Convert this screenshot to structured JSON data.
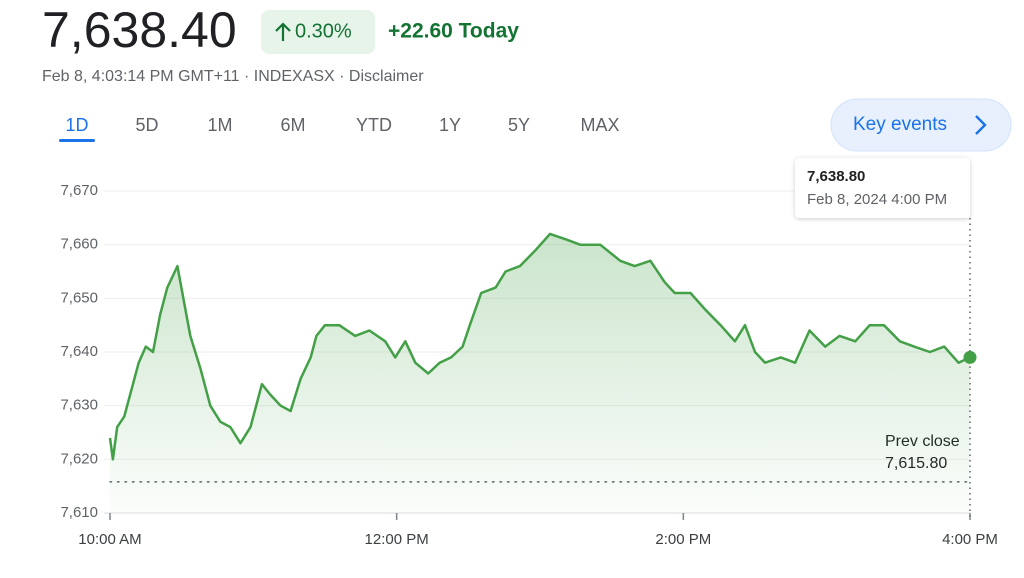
{
  "header": {
    "price": "7,638.40",
    "change_percent": "0.30%",
    "change_today": "+22.60 Today",
    "meta": "Feb 8, 4:03:14 PM GMT+11 · INDEXASX · Disclaimer"
  },
  "tabs": {
    "items": [
      "1D",
      "5D",
      "1M",
      "6M",
      "YTD",
      "1Y",
      "5Y",
      "MAX"
    ],
    "selected": "1D"
  },
  "key_events": "Key events",
  "chart_data": {
    "type": "line",
    "x": [
      10.0,
      10.02,
      10.05,
      10.1,
      10.15,
      10.2,
      10.25,
      10.3,
      10.35,
      10.4,
      10.47,
      10.56,
      10.63,
      10.7,
      10.77,
      10.84,
      10.91,
      10.98,
      11.06,
      11.12,
      11.19,
      11.26,
      11.33,
      11.4,
      11.44,
      11.5,
      11.6,
      11.71,
      11.81,
      11.92,
      11.99,
      12.06,
      12.13,
      12.22,
      12.3,
      12.38,
      12.46,
      12.51,
      12.59,
      12.69,
      12.76,
      12.86,
      12.97,
      13.07,
      13.18,
      13.28,
      13.42,
      13.56,
      13.66,
      13.77,
      13.87,
      13.94,
      14.05,
      14.15,
      14.26,
      14.36,
      14.43,
      14.5,
      14.57,
      14.68,
      14.78,
      14.88,
      14.99,
      15.09,
      15.2,
      15.3,
      15.4,
      15.51,
      15.61,
      15.72,
      15.82,
      15.92,
      16.0
    ],
    "series": [
      {
        "color": "#43a047",
        "values": [
          7624,
          7620,
          7626,
          7628,
          7633,
          7638,
          7641,
          7640,
          7647,
          7652,
          7656,
          7643,
          7637,
          7630,
          7627,
          7626,
          7623,
          7626,
          7634,
          7632,
          7630,
          7629,
          7635,
          7639,
          7643,
          7645,
          7645,
          7643,
          7644,
          7642,
          7639,
          7642,
          7638,
          7636,
          7638,
          7639,
          7641,
          7645,
          7651,
          7652,
          7655,
          7656,
          7659,
          7662,
          7661,
          7660,
          7660,
          7657,
          7656,
          7657,
          7653,
          7651,
          7651,
          7648,
          7645,
          7642,
          7645,
          7640,
          7638,
          7639,
          7638,
          7644,
          7641,
          7643,
          7642,
          7645,
          7645,
          7642,
          7641,
          7640,
          7641,
          7638,
          7639
        ]
      }
    ],
    "xlim": [
      10,
      16
    ],
    "xticks": [
      {
        "value": 10,
        "label": "10:00 AM"
      },
      {
        "value": 12,
        "label": "12:00 PM"
      },
      {
        "value": 14,
        "label": "2:00 PM"
      },
      {
        "value": 16,
        "label": "4:00 PM"
      }
    ],
    "ylim": [
      7610,
      7670
    ],
    "yticks": [
      {
        "value": 7610,
        "label": "7,610"
      },
      {
        "value": 7620,
        "label": "7,620"
      },
      {
        "value": 7630,
        "label": "7,630"
      },
      {
        "value": 7640,
        "label": "7,640"
      },
      {
        "value": 7650,
        "label": "7,650"
      },
      {
        "value": 7660,
        "label": "7,660"
      },
      {
        "value": 7670,
        "label": "7,670"
      }
    ],
    "grid": true,
    "prev_close_title": "Prev close",
    "prev_close": {
      "value": 7615.8,
      "label": "7,615.80"
    },
    "tooltip": {
      "value": {
        "value": 7638.8,
        "label": "7,638.80"
      },
      "date": "Feb 8, 2024 4:00 PM"
    }
  }
}
